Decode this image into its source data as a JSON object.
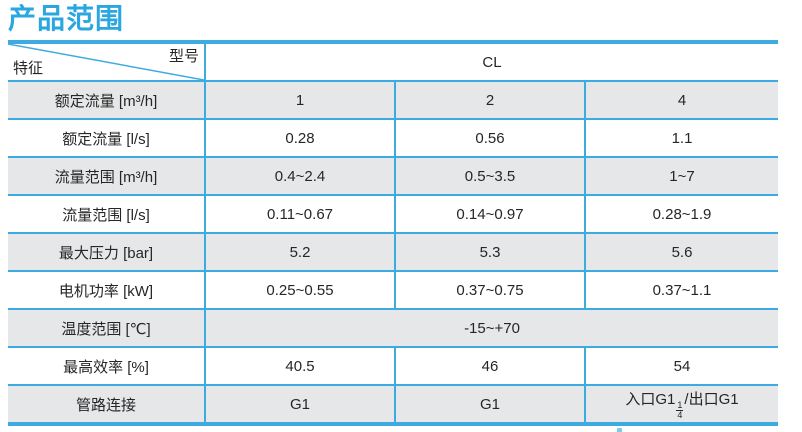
{
  "page_title": "产品范围",
  "colors": {
    "accent_border": "#3dabe0",
    "title_blue": "#2aa7e0",
    "row_alt_gray": "#e6e7e8",
    "text": "#262626"
  },
  "table": {
    "corner": {
      "top_right_label": "型号",
      "bottom_left_label": "特征"
    },
    "model_header": "CL",
    "rows": [
      {
        "label": "额定流量 [m³/h]",
        "values": [
          "1",
          "2",
          "4"
        ]
      },
      {
        "label": "额定流量 [l/s]",
        "values": [
          "0.28",
          "0.56",
          "1.1"
        ]
      },
      {
        "label": "流量范围 [m³/h]",
        "values": [
          "0.4~2.4",
          "0.5~3.5",
          "1~7"
        ]
      },
      {
        "label": "流量范围 [l/s]",
        "values": [
          "0.11~0.67",
          "0.14~0.97",
          "0.28~1.9"
        ]
      },
      {
        "label": "最大压力 [bar]",
        "values": [
          "5.2",
          "5.3",
          "5.6"
        ]
      },
      {
        "label": "电机功率 [kW]",
        "values": [
          "0.25~0.55",
          "0.37~0.75",
          "0.37~1.1"
        ]
      },
      {
        "label": "温度范围 [℃]",
        "span": 3,
        "values": [
          "-15~+70"
        ]
      },
      {
        "label": "最高效率 [%]",
        "values": [
          "40.5",
          "46",
          "54"
        ]
      },
      {
        "label": "管路连接",
        "values": [
          "G1",
          "G1",
          {
            "prefix": "入口G1",
            "numerator": "1",
            "denominator": "4",
            "suffix": "/出口G1"
          }
        ]
      }
    ]
  }
}
